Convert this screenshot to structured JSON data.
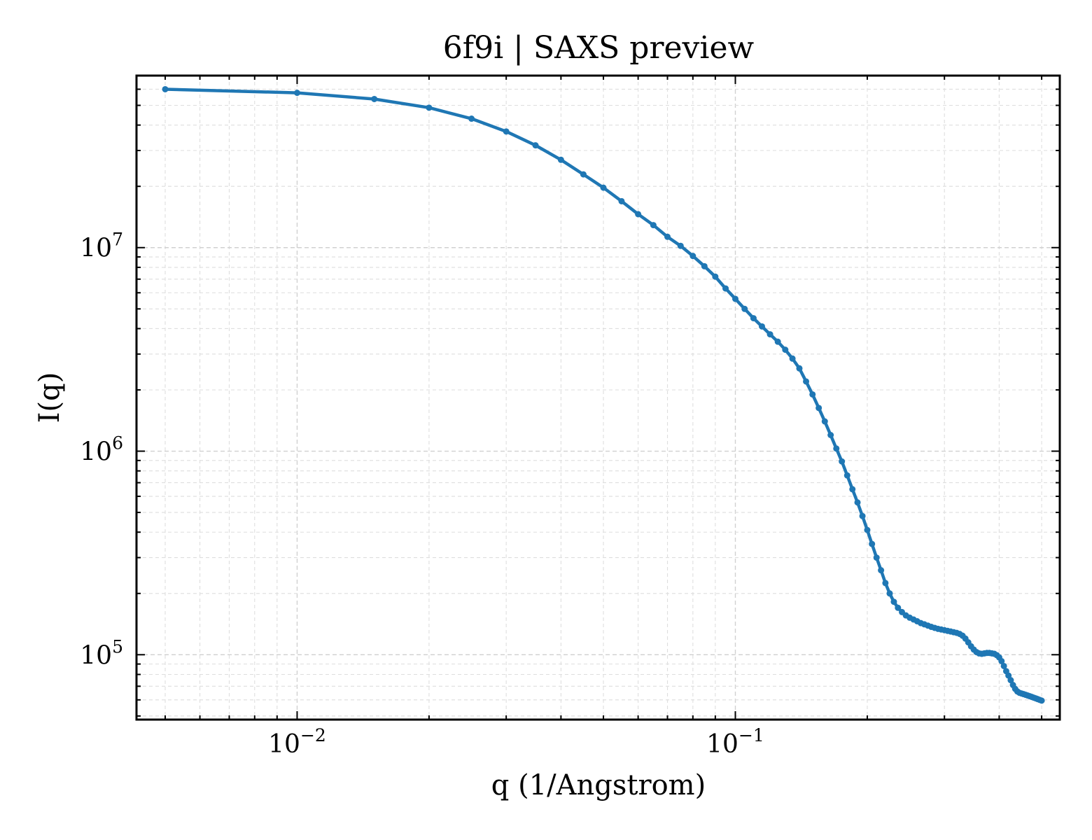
{
  "chart_data": {
    "type": "line",
    "title": "6f9i | SAXS preview",
    "xlabel": "q (1/Angstrom)",
    "ylabel": "I(q)",
    "xscale": "log",
    "yscale": "log",
    "xlim": [
      0.0043,
      0.55
    ],
    "ylim": [
      48000,
      70000000
    ],
    "grid": "on",
    "line_color": "#1f77b4",
    "x_ticks": [
      {
        "base": "10",
        "exp": "−2",
        "value": 0.01
      },
      {
        "base": "10",
        "exp": "−1",
        "value": 0.1
      }
    ],
    "y_ticks": [
      {
        "base": "10",
        "exp": "5",
        "value": 100000
      },
      {
        "base": "10",
        "exp": "6",
        "value": 1000000
      },
      {
        "base": "10",
        "exp": "7",
        "value": 10000000
      }
    ],
    "series": [
      {
        "x": [
          0.005,
          0.01,
          0.015,
          0.02,
          0.025,
          0.03,
          0.035,
          0.04,
          0.045,
          0.05,
          0.055,
          0.06,
          0.065,
          0.07,
          0.075,
          0.08,
          0.085,
          0.09,
          0.095,
          0.1,
          0.105,
          0.11,
          0.115,
          0.12,
          0.125,
          0.13,
          0.135,
          0.14,
          0.145,
          0.15,
          0.155,
          0.16,
          0.165,
          0.17,
          0.175,
          0.18,
          0.185,
          0.19,
          0.195,
          0.2,
          0.205,
          0.21,
          0.215,
          0.22,
          0.225,
          0.23,
          0.235,
          0.24,
          0.245,
          0.25,
          0.255,
          0.26,
          0.265,
          0.27,
          0.275,
          0.28,
          0.285,
          0.29,
          0.295,
          0.3,
          0.305,
          0.31,
          0.315,
          0.32,
          0.325,
          0.33,
          0.335,
          0.34,
          0.345,
          0.35,
          0.355,
          0.36,
          0.365,
          0.37,
          0.375,
          0.38,
          0.385,
          0.39,
          0.395,
          0.4,
          0.405,
          0.41,
          0.415,
          0.42,
          0.425,
          0.43,
          0.435,
          0.44,
          0.445,
          0.45,
          0.455,
          0.46,
          0.465,
          0.47,
          0.475,
          0.48,
          0.485,
          0.49,
          0.495,
          0.5
        ],
        "y": [
          60000000,
          57600000,
          53700000,
          48700000,
          43000000,
          37200000,
          31800000,
          27000000,
          22900000,
          19700000,
          16900000,
          14600000,
          12900000,
          11300000,
          10200000,
          9100000,
          8100000,
          7200000,
          6300000,
          5600000,
          5000000,
          4500000,
          4100000,
          3750000,
          3450000,
          3150000,
          2850000,
          2550000,
          2200000,
          1900000,
          1630000,
          1400000,
          1200000,
          1030000,
          890000,
          760000,
          650000,
          560000,
          480000,
          410000,
          350000,
          300000,
          260000,
          225000,
          200000,
          182000,
          170000,
          162000,
          156000,
          152000,
          149000,
          146000,
          143000,
          141000,
          139000,
          137000,
          135500,
          134000,
          133000,
          132000,
          131000,
          130000,
          129000,
          128000,
          126500,
          124000,
          120000,
          115000,
          110000,
          106000,
          103000,
          101500,
          101000,
          101500,
          102000,
          102000,
          101500,
          101000,
          99500,
          97000,
          93000,
          88000,
          83000,
          79000,
          75000,
          71000,
          68000,
          66000,
          65000,
          64500,
          64000,
          63500,
          63000,
          62500,
          62000,
          61500,
          61000,
          60500,
          60000,
          59500
        ]
      }
    ]
  }
}
